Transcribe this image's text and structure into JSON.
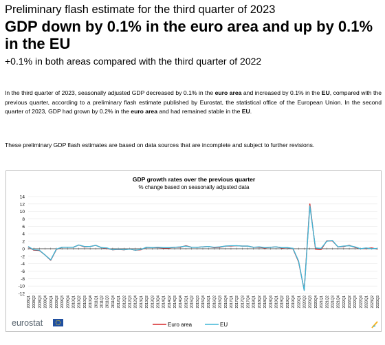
{
  "header": {
    "kicker": "Preliminary flash estimate for the third quarter of 2023",
    "headline": "GDP down by 0.1% in the euro area and up by 0.1% in the EU",
    "subheadline": "+0.1% in both areas compared with the third quarter of 2022"
  },
  "body": {
    "p1": [
      {
        "t": "In the third quarter of 2023, seasonally adjusted GDP decreased by 0.1% in the ",
        "b": false
      },
      {
        "t": "euro area",
        "b": true
      },
      {
        "t": " and increased by 0.1% in the ",
        "b": false
      },
      {
        "t": "EU",
        "b": true
      },
      {
        "t": ", compared with the previous quarter, according to a preliminary flash estimate published by Eurostat, the statistical office of the European Union. In the second quarter of 2023, GDP had grown by 0.2% in the ",
        "b": false
      },
      {
        "t": "euro area",
        "b": true
      },
      {
        "t": " and had remained stable in the ",
        "b": false
      },
      {
        "t": "EU",
        "b": true
      },
      {
        "t": ".",
        "b": false
      }
    ],
    "p2": "These preliminary GDP flash estimates are based on data sources that are incomplete and subject to further revisions."
  },
  "footer": {
    "logo_text": "eurostat"
  },
  "colors": {
    "euro_area": "#d62728",
    "eu": "#3fb6d6",
    "logo_text": "#5a6670",
    "logo_flag": "#1f4fa0",
    "logo_stars": "#f6d21d"
  },
  "chart_data": {
    "type": "line",
    "title": "GDP growth rates over the previous quarter",
    "subtitle": "% change based on seasonally adjusted data",
    "ylim": [
      -12,
      14
    ],
    "yticks": [
      14,
      12,
      10,
      8,
      6,
      4,
      2,
      0,
      -2,
      -4,
      -6,
      -8,
      -10,
      -12
    ],
    "grid": true,
    "legend_position": "bottom",
    "categories": [
      "2008Q1",
      "2008Q2",
      "2008Q3",
      "2008Q4",
      "2009Q1",
      "2009Q2",
      "2009Q3",
      "2009Q4",
      "2010Q1",
      "2010Q2",
      "2010Q3",
      "2010Q4",
      "2011Q1",
      "2011Q2",
      "2011Q3",
      "2011Q4",
      "2012Q1",
      "2012Q2",
      "2012Q3",
      "2012Q4",
      "2013Q1",
      "2013Q2",
      "2013Q3",
      "2013Q4",
      "2014Q1",
      "2014Q2",
      "2014Q3",
      "2014Q4",
      "2015Q1",
      "2015Q2",
      "2015Q3",
      "2015Q4",
      "2016Q1",
      "2016Q2",
      "2016Q3",
      "2016Q4",
      "2017Q1",
      "2017Q2",
      "2017Q3",
      "2017Q4",
      "2018Q1",
      "2018Q2",
      "2018Q3",
      "2018Q4",
      "2019Q1",
      "2019Q2",
      "2019Q3",
      "2019Q4",
      "2020Q1",
      "2020Q2",
      "2020Q3",
      "2020Q4",
      "2021Q1",
      "2021Q2",
      "2021Q3",
      "2021Q4",
      "2022Q1",
      "2022Q2",
      "2022Q3",
      "2022Q4",
      "2023Q1",
      "2023Q2",
      "2023Q3"
    ],
    "series": [
      {
        "name": "Euro area",
        "values": [
          0.5,
          -0.4,
          -0.5,
          -1.7,
          -3.1,
          -0.2,
          0.4,
          0.4,
          0.4,
          1.0,
          0.5,
          0.6,
          0.9,
          0.3,
          0.1,
          -0.3,
          -0.2,
          -0.3,
          -0.1,
          -0.4,
          -0.3,
          0.4,
          0.3,
          0.3,
          0.2,
          0.2,
          0.4,
          0.4,
          0.8,
          0.4,
          0.4,
          0.5,
          0.6,
          0.3,
          0.4,
          0.7,
          0.7,
          0.8,
          0.7,
          0.7,
          0.4,
          0.4,
          0.2,
          0.4,
          0.5,
          0.2,
          0.3,
          0.0,
          -3.5,
          -11.1,
          12.0,
          -0.1,
          -0.2,
          2.1,
          2.1,
          0.5,
          0.6,
          0.9,
          0.4,
          0.0,
          0.1,
          0.2,
          -0.1
        ]
      },
      {
        "name": "EU",
        "values": [
          0.6,
          -0.3,
          -0.4,
          -1.7,
          -3.0,
          -0.1,
          0.4,
          0.4,
          0.4,
          1.0,
          0.6,
          0.6,
          0.9,
          0.3,
          0.2,
          -0.3,
          -0.1,
          -0.3,
          -0.1,
          -0.4,
          -0.2,
          0.4,
          0.3,
          0.4,
          0.3,
          0.3,
          0.4,
          0.5,
          0.7,
          0.4,
          0.4,
          0.5,
          0.6,
          0.4,
          0.5,
          0.7,
          0.8,
          0.8,
          0.7,
          0.7,
          0.4,
          0.5,
          0.3,
          0.4,
          0.5,
          0.3,
          0.3,
          0.1,
          -3.3,
          -11.2,
          11.5,
          0.2,
          0.1,
          2.0,
          2.2,
          0.5,
          0.7,
          0.8,
          0.5,
          0.0,
          0.2,
          0.0,
          0.1
        ]
      }
    ]
  }
}
